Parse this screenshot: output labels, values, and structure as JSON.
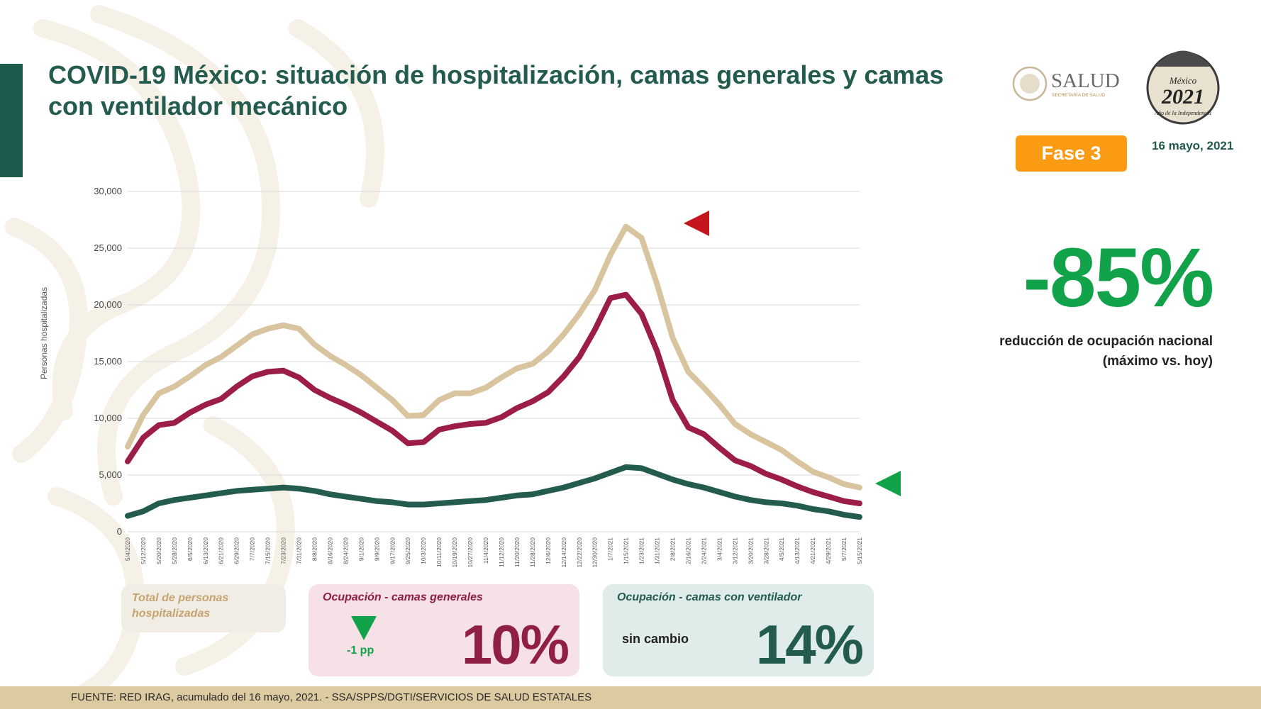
{
  "title": "COVID-19 México: situación de hospitalización, camas generales y camas con ventilador mecánico",
  "header": {
    "logo_salud_text": "SALUD",
    "logo_salud_sub": "SECRETARÍA DE SALUD",
    "logo_2021_text": "2021",
    "logo_2021_top": "México",
    "logo_2021_sub": "Año de la Independencia",
    "phase_label": "Fase 3",
    "date": "16 mayo, 2021"
  },
  "headline": {
    "value": "-85%",
    "label": "reducción de ocupación nacional (máximo vs. hoy)",
    "color": "#12a24a"
  },
  "legend_boxes": {
    "total": {
      "label": "Total de personas hospitalizadas",
      "color": "#c4a46f"
    },
    "general": {
      "title": "Ocupación - camas generales",
      "change": "-1 pp",
      "value": "10%",
      "color": "#8f1f44"
    },
    "ventilator": {
      "title": "Ocupación - camas con ventilador",
      "change": "sin cambio",
      "value": "14%",
      "color": "#235b4e"
    }
  },
  "footer": "FUENTE: RED IRAG, acumulado del 16 mayo, 2021. -  SSA/SPPS/DGTI/SERVICIOS DE SALUD ESTATALES",
  "colors": {
    "total": "#d8c49e",
    "general": "#9b1d48",
    "ventilator": "#235b4e",
    "marker_red": "#c4161c",
    "marker_green": "#12a24a",
    "accent": "#1e5b4f",
    "phase": "#fb9b13"
  },
  "chart_data": {
    "type": "line",
    "title": "",
    "xlabel": "",
    "ylabel": "Personas hospitalizadas",
    "ylim": [
      0,
      30000
    ],
    "yticks": [
      0,
      5000,
      10000,
      15000,
      20000,
      25000,
      30000
    ],
    "ytick_labels": [
      "0",
      "5,000",
      "10,000",
      "15,000",
      "20,000",
      "25,000",
      "30,000"
    ],
    "x_dates": [
      "5/4/2020",
      "5/12/2020",
      "5/20/2020",
      "5/28/2020",
      "6/5/2020",
      "6/13/2020",
      "6/21/2020",
      "6/29/2020",
      "7/7/2020",
      "7/15/2020",
      "7/23/2020",
      "7/31/2020",
      "8/8/2020",
      "8/16/2020",
      "8/24/2020",
      "9/1/2020",
      "9/9/2020",
      "9/17/2020",
      "9/25/2020",
      "10/3/2020",
      "10/11/2020",
      "10/19/2020",
      "10/27/2020",
      "11/4/2020",
      "11/12/2020",
      "11/20/2020",
      "11/28/2020",
      "12/6/2020",
      "12/14/2020",
      "12/22/2020",
      "12/30/2020",
      "1/7/2021",
      "1/15/2021",
      "1/23/2021",
      "1/31/2021",
      "2/8/2021",
      "2/16/2021",
      "2/24/2021",
      "3/4/2021",
      "3/12/2021",
      "3/20/2021",
      "3/28/2021",
      "4/5/2021",
      "4/13/2021",
      "4/21/2021",
      "4/29/2021",
      "5/7/2021",
      "5/15/2021"
    ],
    "series": [
      {
        "name": "Total de personas hospitalizadas",
        "values": [
          7500,
          10300,
          12200,
          12800,
          13700,
          14700,
          15400,
          16400,
          17400,
          17900,
          18200,
          17900,
          16500,
          15500,
          14700,
          13800,
          12700,
          11600,
          10200,
          10300,
          11600,
          12200,
          12200,
          12700,
          13600,
          14400,
          14800,
          15900,
          17400,
          19200,
          21300,
          24400,
          26900,
          25900,
          21800,
          17100,
          14100,
          12700,
          11200,
          9500,
          8600,
          7900,
          7200,
          6200,
          5300,
          4800,
          4200,
          3900
        ]
      },
      {
        "name": "Ocupación - camas generales",
        "values": [
          6200,
          8300,
          9400,
          9600,
          10500,
          11200,
          11700,
          12800,
          13700,
          14100,
          14200,
          13600,
          12500,
          11800,
          11200,
          10500,
          9700,
          8900,
          7800,
          7900,
          9000,
          9300,
          9500,
          9600,
          10100,
          10900,
          11500,
          12300,
          13700,
          15400,
          17800,
          20600,
          20900,
          19200,
          15900,
          11600,
          9200,
          8600,
          7400,
          6300,
          5800,
          5100,
          4600,
          4000,
          3500,
          3100,
          2700,
          2500
        ]
      },
      {
        "name": "Ocupación - camas con ventilador",
        "values": [
          1400,
          1800,
          2500,
          2800,
          3000,
          3200,
          3400,
          3600,
          3700,
          3800,
          3900,
          3800,
          3600,
          3300,
          3100,
          2900,
          2700,
          2600,
          2400,
          2400,
          2500,
          2600,
          2700,
          2800,
          3000,
          3200,
          3300,
          3600,
          3900,
          4300,
          4700,
          5200,
          5700,
          5600,
          5100,
          4600,
          4200,
          3900,
          3500,
          3100,
          2800,
          2600,
          2500,
          2300,
          2000,
          1800,
          1500,
          1300
        ]
      }
    ]
  }
}
